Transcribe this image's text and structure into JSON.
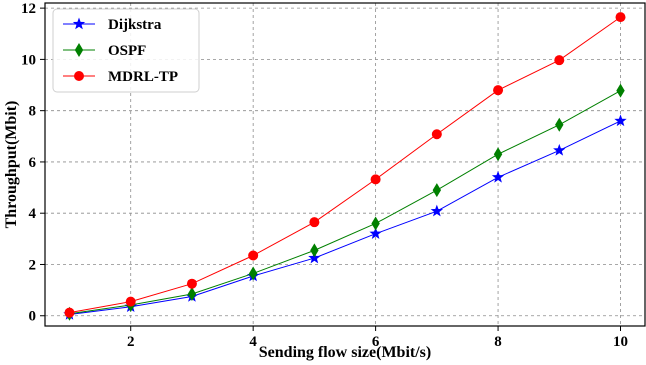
{
  "chart_data": {
    "type": "line",
    "title": "",
    "xlabel": "Sending flow size(Mbit/s)",
    "ylabel": "Throughput(Mbit)",
    "x": [
      1,
      2,
      3,
      4,
      5,
      6,
      7,
      8,
      9,
      10
    ],
    "xlim": [
      0.6,
      10.4
    ],
    "ylim": [
      -0.4,
      12.2
    ],
    "xticks": [
      2,
      4,
      6,
      8,
      10
    ],
    "yticks": [
      0,
      2,
      4,
      6,
      8,
      10,
      12
    ],
    "grid": true,
    "legend_position": "top-left",
    "series": [
      {
        "name": "Dijkstra",
        "color": "#0000ff",
        "marker": "star",
        "values": [
          0.05,
          0.35,
          0.75,
          1.55,
          2.25,
          3.2,
          4.08,
          5.4,
          6.45,
          7.6
        ]
      },
      {
        "name": "OSPF",
        "color": "#008000",
        "marker": "thin-diamond",
        "values": [
          0.08,
          0.42,
          0.85,
          1.65,
          2.55,
          3.6,
          4.9,
          6.3,
          7.45,
          8.78
        ]
      },
      {
        "name": "MDRL-TP",
        "color": "#ff0000",
        "marker": "circle",
        "values": [
          0.12,
          0.55,
          1.25,
          2.35,
          3.65,
          5.32,
          7.08,
          8.8,
          9.97,
          11.65
        ]
      }
    ]
  }
}
